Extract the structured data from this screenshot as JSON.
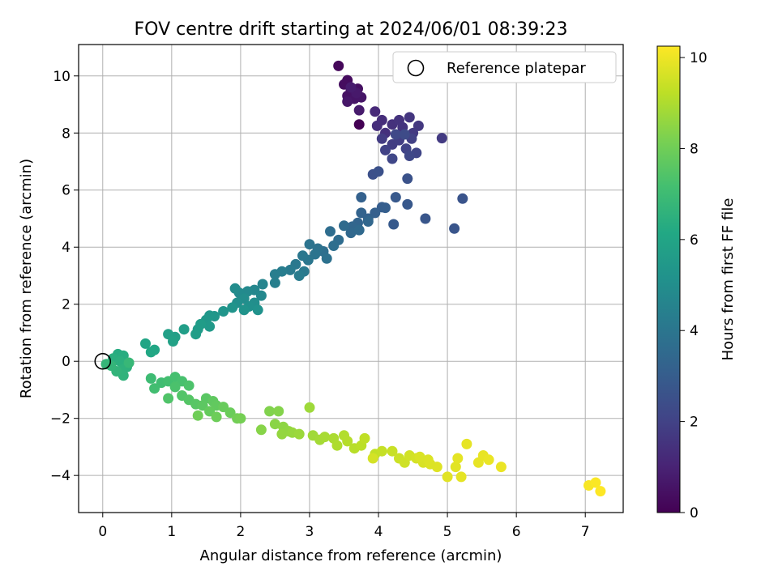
{
  "chart_data": {
    "type": "scatter",
    "title": "FOV centre drift starting at 2024/06/01 08:39:23",
    "xlabel": "Angular distance from reference (arcmin)",
    "ylabel": "Rotation from reference (arcmin)",
    "xlim": [
      -0.35,
      7.55
    ],
    "ylim": [
      -5.3,
      11.1
    ],
    "x_ticks": [
      0,
      1,
      2,
      3,
      4,
      5,
      6,
      7
    ],
    "y_ticks": [
      -4,
      -2,
      0,
      2,
      4,
      6,
      8,
      10
    ],
    "grid": true,
    "legend": {
      "position": "top-right",
      "entries": [
        "Reference platepar"
      ]
    },
    "reference_point": {
      "x": 0,
      "y": 0,
      "label": "Reference platepar"
    },
    "colorbar": {
      "label": "Hours from first FF file",
      "colormap": "viridis",
      "range": [
        0,
        10.25
      ],
      "ticks": [
        0,
        2,
        4,
        6,
        8,
        10
      ]
    },
    "series": [
      {
        "color_by": "hours",
        "points": [
          [
            3.72,
            8.3,
            0.0
          ],
          [
            3.42,
            10.35,
            0.2
          ],
          [
            3.55,
            9.85,
            0.3
          ],
          [
            3.5,
            9.7,
            0.35
          ],
          [
            3.6,
            9.5,
            0.4
          ],
          [
            3.7,
            9.55,
            0.45
          ],
          [
            3.55,
            9.3,
            0.5
          ],
          [
            3.65,
            9.2,
            0.55
          ],
          [
            3.75,
            9.25,
            0.6
          ],
          [
            3.55,
            9.1,
            0.65
          ],
          [
            3.68,
            9.4,
            0.7
          ],
          [
            3.72,
            8.8,
            0.75
          ],
          [
            3.6,
            9.6,
            0.8
          ],
          [
            3.95,
            8.75,
            1.2
          ],
          [
            4.05,
            8.45,
            1.3
          ],
          [
            3.98,
            8.25,
            1.35
          ],
          [
            4.1,
            8.0,
            1.4
          ],
          [
            4.2,
            8.3,
            1.45
          ],
          [
            4.3,
            8.45,
            1.5
          ],
          [
            4.35,
            8.2,
            1.55
          ],
          [
            4.45,
            8.55,
            1.6
          ],
          [
            4.58,
            8.25,
            1.65
          ],
          [
            4.5,
            8.0,
            1.7
          ],
          [
            4.92,
            7.82,
            1.75
          ],
          [
            4.05,
            7.8,
            1.8
          ],
          [
            4.2,
            7.6,
            1.85
          ],
          [
            4.3,
            7.75,
            1.9
          ],
          [
            4.48,
            7.8,
            1.95
          ],
          [
            4.1,
            7.4,
            2.0
          ],
          [
            4.4,
            7.45,
            2.05
          ],
          [
            4.55,
            7.3,
            2.1
          ],
          [
            4.2,
            7.1,
            2.15
          ],
          [
            4.45,
            7.2,
            2.2
          ],
          [
            4.25,
            7.95,
            2.25
          ],
          [
            4.38,
            7.95,
            2.3
          ],
          [
            3.92,
            6.55,
            2.5
          ],
          [
            4.0,
            6.65,
            2.55
          ],
          [
            4.42,
            6.4,
            2.6
          ],
          [
            5.22,
            5.7,
            2.65
          ],
          [
            5.1,
            4.65,
            2.7
          ],
          [
            4.68,
            5.0,
            2.75
          ],
          [
            4.42,
            5.5,
            2.8
          ],
          [
            4.25,
            5.75,
            2.85
          ],
          [
            4.22,
            4.8,
            2.9
          ],
          [
            4.05,
            5.4,
            3.0
          ],
          [
            4.1,
            5.38,
            3.05
          ],
          [
            3.95,
            5.2,
            3.1
          ],
          [
            3.75,
            5.75,
            3.15
          ],
          [
            3.85,
            5.0,
            3.2
          ],
          [
            3.75,
            5.2,
            3.25
          ],
          [
            3.7,
            4.85,
            3.3
          ],
          [
            3.62,
            4.72,
            3.35
          ],
          [
            3.85,
            4.9,
            3.4
          ],
          [
            3.6,
            4.5,
            3.45
          ],
          [
            3.72,
            4.6,
            3.5
          ],
          [
            3.5,
            4.75,
            3.55
          ],
          [
            3.42,
            4.25,
            3.6
          ],
          [
            3.3,
            4.55,
            3.65
          ],
          [
            3.35,
            4.05,
            3.7
          ],
          [
            3.2,
            3.85,
            3.75
          ],
          [
            3.25,
            3.6,
            3.8
          ],
          [
            3.12,
            3.95,
            3.85
          ],
          [
            3.0,
            4.1,
            3.9
          ],
          [
            3.08,
            3.75,
            3.95
          ],
          [
            2.98,
            3.55,
            4.0
          ],
          [
            2.9,
            3.7,
            4.05
          ],
          [
            2.8,
            3.4,
            4.1
          ],
          [
            2.92,
            3.15,
            4.15
          ],
          [
            2.72,
            3.2,
            4.2
          ],
          [
            2.85,
            3.0,
            4.25
          ],
          [
            2.6,
            3.15,
            4.3
          ],
          [
            2.5,
            3.05,
            4.35
          ],
          [
            2.5,
            2.75,
            4.4
          ],
          [
            2.32,
            2.7,
            4.6
          ],
          [
            2.2,
            2.5,
            4.7
          ],
          [
            2.3,
            2.3,
            4.75
          ],
          [
            2.1,
            2.45,
            4.8
          ],
          [
            1.98,
            2.4,
            4.85
          ],
          [
            1.92,
            2.55,
            4.9
          ],
          [
            2.05,
            2.2,
            4.95
          ],
          [
            2.2,
            2.05,
            5.0
          ],
          [
            1.95,
            2.05,
            5.05
          ],
          [
            2.12,
            1.92,
            5.1
          ],
          [
            2.25,
            1.8,
            5.15
          ],
          [
            2.05,
            1.8,
            5.2
          ],
          [
            1.88,
            1.88,
            5.25
          ],
          [
            1.75,
            1.75,
            5.3
          ],
          [
            1.62,
            1.58,
            5.35
          ],
          [
            1.55,
            1.6,
            5.4
          ],
          [
            1.5,
            1.45,
            5.45
          ],
          [
            1.55,
            1.22,
            5.5
          ],
          [
            1.38,
            1.12,
            5.55
          ],
          [
            1.42,
            1.3,
            5.6
          ],
          [
            1.35,
            0.95,
            5.65
          ],
          [
            1.18,
            1.12,
            5.7
          ],
          [
            1.05,
            0.85,
            5.75
          ],
          [
            0.95,
            0.95,
            5.8
          ],
          [
            1.02,
            0.7,
            5.85
          ],
          [
            0.62,
            0.62,
            6.0
          ],
          [
            0.75,
            0.4,
            6.05
          ],
          [
            0.7,
            0.32,
            6.1
          ],
          [
            0.22,
            0.25,
            6.3
          ],
          [
            0.3,
            0.2,
            6.35
          ],
          [
            0.15,
            0.1,
            6.4
          ],
          [
            0.25,
            0.0,
            6.45
          ],
          [
            0.35,
            -0.2,
            6.5
          ],
          [
            0.28,
            -0.3,
            6.55
          ],
          [
            0.3,
            -0.5,
            6.6
          ],
          [
            0.2,
            -0.35,
            6.65
          ],
          [
            0.12,
            -0.15,
            6.7
          ],
          [
            0.05,
            -0.1,
            6.75
          ],
          [
            0.38,
            -0.05,
            6.8
          ],
          [
            0.7,
            -0.6,
            7.0
          ],
          [
            0.85,
            -0.75,
            7.05
          ],
          [
            0.75,
            -0.95,
            7.1
          ],
          [
            0.95,
            -0.7,
            7.15
          ],
          [
            1.05,
            -0.55,
            7.2
          ],
          [
            1.15,
            -0.7,
            7.25
          ],
          [
            1.05,
            -0.9,
            7.3
          ],
          [
            1.25,
            -0.85,
            7.35
          ],
          [
            0.95,
            -1.3,
            7.4
          ],
          [
            1.15,
            -1.2,
            7.45
          ],
          [
            1.25,
            -1.35,
            7.5
          ],
          [
            1.35,
            -1.5,
            7.55
          ],
          [
            1.5,
            -1.3,
            7.6
          ],
          [
            1.45,
            -1.55,
            7.65
          ],
          [
            1.6,
            -1.4,
            7.7
          ],
          [
            1.65,
            -1.55,
            7.75
          ],
          [
            1.55,
            -1.75,
            7.8
          ],
          [
            1.75,
            -1.6,
            7.85
          ],
          [
            1.85,
            -1.8,
            7.9
          ],
          [
            1.65,
            -1.95,
            7.95
          ],
          [
            1.38,
            -1.9,
            8.0
          ],
          [
            1.95,
            -2.0,
            8.05
          ],
          [
            2.0,
            -2.0,
            8.1
          ],
          [
            2.42,
            -1.75,
            8.3
          ],
          [
            2.55,
            -1.75,
            8.35
          ],
          [
            2.3,
            -2.4,
            8.4
          ],
          [
            2.5,
            -2.2,
            8.45
          ],
          [
            2.62,
            -2.3,
            8.5
          ],
          [
            2.7,
            -2.45,
            8.55
          ],
          [
            2.6,
            -2.55,
            8.6
          ],
          [
            2.75,
            -2.5,
            8.65
          ],
          [
            2.85,
            -2.55,
            8.7
          ],
          [
            3.0,
            -1.62,
            8.75
          ],
          [
            3.05,
            -2.6,
            8.8
          ],
          [
            3.15,
            -2.75,
            8.85
          ],
          [
            3.22,
            -2.65,
            8.9
          ],
          [
            3.35,
            -2.7,
            8.95
          ],
          [
            3.4,
            -2.95,
            9.0
          ],
          [
            3.5,
            -2.6,
            9.05
          ],
          [
            3.55,
            -2.8,
            9.1
          ],
          [
            3.65,
            -3.05,
            9.15
          ],
          [
            3.75,
            -2.95,
            9.2
          ],
          [
            3.8,
            -2.7,
            9.25
          ],
          [
            3.95,
            -3.25,
            9.3
          ],
          [
            4.05,
            -3.15,
            9.35
          ],
          [
            4.2,
            -3.15,
            9.4
          ],
          [
            4.3,
            -3.4,
            9.45
          ],
          [
            4.38,
            -3.55,
            9.5
          ],
          [
            4.45,
            -3.3,
            9.55
          ],
          [
            4.55,
            -3.4,
            9.6
          ],
          [
            4.65,
            -3.55,
            9.65
          ],
          [
            4.72,
            -3.45,
            9.7
          ],
          [
            4.85,
            -3.7,
            9.75
          ],
          [
            5.0,
            -4.05,
            9.8
          ],
          [
            5.12,
            -3.7,
            9.82
          ],
          [
            5.15,
            -3.4,
            9.85
          ],
          [
            5.2,
            -4.05,
            9.87
          ],
          [
            5.28,
            -2.9,
            9.88
          ],
          [
            5.45,
            -3.55,
            9.9
          ],
          [
            5.52,
            -3.3,
            9.92
          ],
          [
            5.6,
            -3.45,
            9.94
          ],
          [
            5.78,
            -3.7,
            9.96
          ],
          [
            3.92,
            -3.4,
            9.6
          ],
          [
            4.6,
            -3.35,
            9.68
          ],
          [
            4.75,
            -3.6,
            9.72
          ],
          [
            7.05,
            -4.35,
            10.15
          ],
          [
            7.15,
            -4.25,
            10.2
          ],
          [
            7.22,
            -4.55,
            10.25
          ]
        ]
      }
    ]
  }
}
